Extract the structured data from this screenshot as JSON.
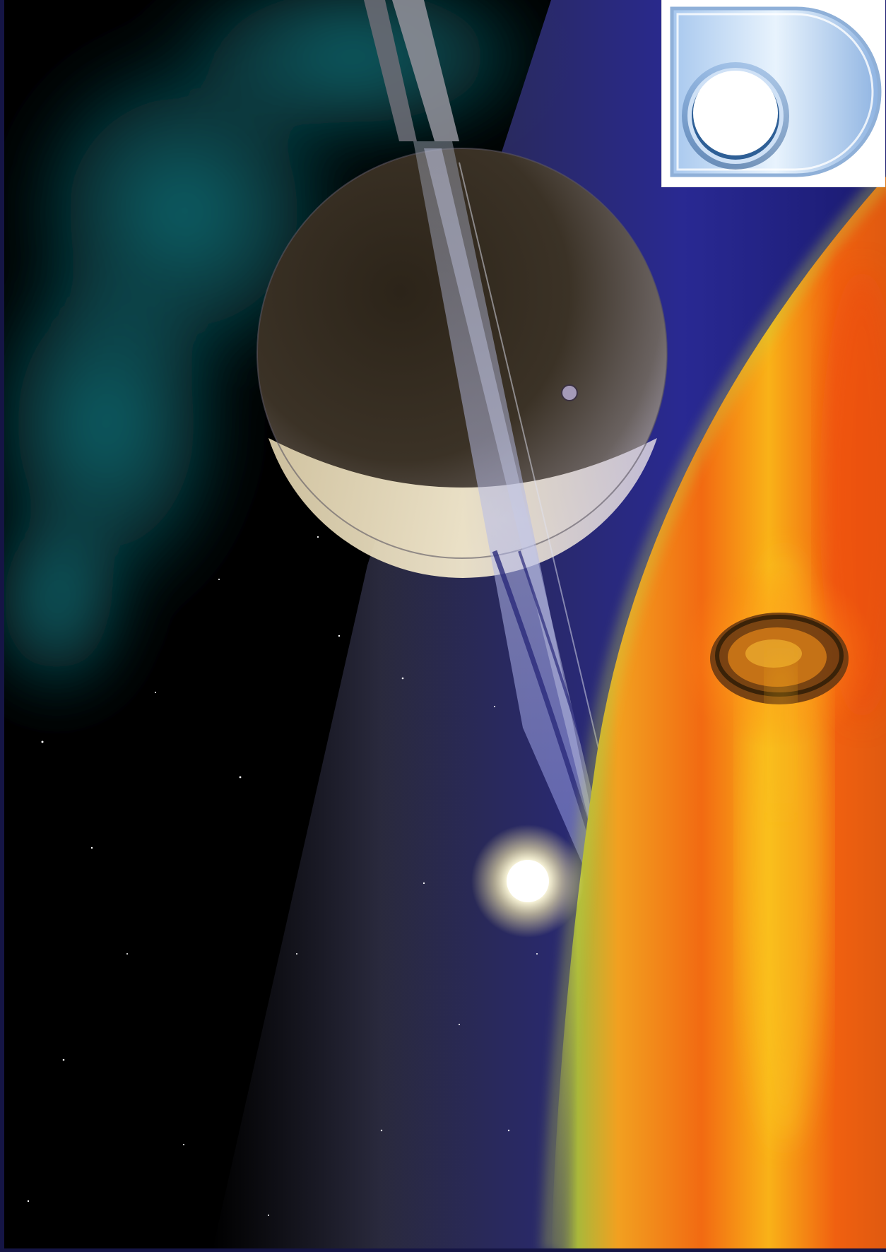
{
  "scene": {
    "subject": "space-wallpaper",
    "elements": [
      "nebula",
      "ringed-planet",
      "small-moon",
      "star",
      "orange-gas-giant",
      "ringed-ship",
      "logo"
    ],
    "colors": {
      "space": "#000000",
      "nebula": "#0f6f77",
      "haze_blue": "#27278f",
      "planet_body": "#3a2f22",
      "planet_rim": "#e8ddc2",
      "rings": "#9fa6e6",
      "gas_giant_orange": "#f06a10",
      "gas_giant_yellow": "#f7c21a",
      "star_core": "#fffbe6",
      "logo_blue": "#9fc3ea",
      "border": "#151545"
    }
  },
  "logo": {
    "icon": "d-shaped-logo-icon",
    "background": "#ffffff"
  }
}
